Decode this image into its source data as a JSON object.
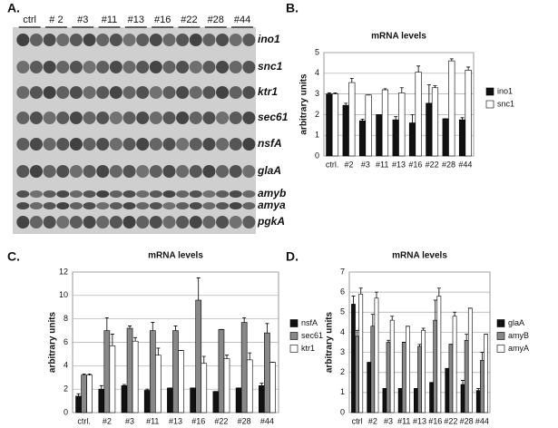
{
  "blot": {
    "panel_label": "A.",
    "lanes": [
      "ctrl",
      "# 2",
      "#3",
      "#11",
      "#13",
      "#16",
      "#22",
      "#28",
      "#44"
    ],
    "genes": [
      "ino1",
      "snc1",
      "ktr1",
      "sec61",
      "nsfA",
      "glaA",
      "amyb",
      "amya",
      "pgkA"
    ]
  },
  "chart_data": [
    {
      "type": "bar",
      "panel_label": "B.",
      "title": "mRNA levels",
      "y_label": "arbitrary units",
      "categories": [
        "ctrl.",
        "#2",
        "#3",
        "#11",
        "#13",
        "#16",
        "#22",
        "#28",
        "#44"
      ],
      "series": [
        {
          "name": "ino1",
          "color": "#111111",
          "values": [
            3.0,
            2.45,
            1.7,
            2.0,
            1.75,
            1.6,
            2.55,
            1.8,
            1.75
          ],
          "errors": [
            0.05,
            0.1,
            0.08,
            0,
            0.15,
            0.4,
            0.9,
            0,
            0.1
          ]
        },
        {
          "name": "snc1",
          "color": "#ffffff",
          "values": [
            3.0,
            3.55,
            2.95,
            3.2,
            3.05,
            4.05,
            3.3,
            4.6,
            4.15
          ],
          "errors": [
            0.05,
            0.2,
            0,
            0.05,
            0.25,
            0.3,
            0.1,
            0.1,
            0.15
          ]
        }
      ],
      "ylim": [
        0,
        5
      ],
      "yticks": [
        0,
        1,
        2,
        3,
        4,
        5
      ],
      "grid": true,
      "legend": "right"
    },
    {
      "type": "bar",
      "panel_label": "C.",
      "title": "mRNA levels",
      "y_label": "arbitrary units",
      "categories": [
        "ctrl.",
        "#2",
        "#3",
        "#11",
        "#13",
        "#16",
        "#22",
        "#28",
        "#44"
      ],
      "series": [
        {
          "name": "nsfA",
          "color": "#111111",
          "values": [
            1.4,
            2.0,
            2.3,
            1.9,
            2.1,
            2.1,
            1.8,
            2.1,
            2.3
          ],
          "errors": [
            0.2,
            0.3,
            0.1,
            0.1,
            0,
            0,
            0,
            0,
            0.2
          ]
        },
        {
          "name": "sec61",
          "color": "#888888",
          "values": [
            3.2,
            7.0,
            7.2,
            7.0,
            7.0,
            9.6,
            7.1,
            7.7,
            6.8
          ],
          "errors": [
            0.1,
            1.1,
            0.2,
            0.7,
            0.4,
            1.9,
            0,
            0.4,
            0.8
          ]
        },
        {
          "name": "ktr1",
          "color": "#ffffff",
          "values": [
            3.2,
            5.7,
            6.1,
            4.9,
            5.3,
            4.2,
            4.6,
            4.5,
            4.3
          ],
          "errors": [
            0.1,
            1.0,
            0.3,
            0.6,
            0,
            0.6,
            0.3,
            0.6,
            0
          ]
        }
      ],
      "ylim": [
        0,
        12
      ],
      "yticks": [
        0,
        2,
        4,
        6,
        8,
        10,
        12
      ],
      "grid": true,
      "legend": "right"
    },
    {
      "type": "bar",
      "panel_label": "D.",
      "title": "mRNA levels",
      "y_label": "arbitrary units",
      "categories": [
        "ctrl",
        "#2",
        "#3",
        "#11",
        "#13",
        "#16",
        "#22",
        "#28",
        "#44"
      ],
      "series": [
        {
          "name": "glaA",
          "color": "#111111",
          "values": [
            5.4,
            2.5,
            1.2,
            1.2,
            1.2,
            1.5,
            2.2,
            1.4,
            1.1
          ],
          "errors": [
            0.4,
            0,
            0,
            0,
            0,
            0,
            0,
            0.2,
            0.1
          ]
        },
        {
          "name": "amyB",
          "color": "#888888",
          "values": [
            3.8,
            4.3,
            3.5,
            3.5,
            3.3,
            4.6,
            3.4,
            3.6,
            2.6
          ],
          "errors": [
            0.3,
            0.6,
            0.1,
            0,
            0.1,
            1.0,
            0,
            0.3,
            0.4
          ]
        },
        {
          "name": "amyA",
          "color": "#ffffff",
          "values": [
            5.9,
            5.7,
            4.6,
            4.3,
            4.1,
            5.8,
            4.8,
            5.2,
            3.9
          ],
          "errors": [
            0.3,
            0.3,
            0.2,
            0,
            0.1,
            0.4,
            0.2,
            0,
            0
          ]
        }
      ],
      "ylim": [
        0,
        7
      ],
      "yticks": [
        0,
        1,
        2,
        3,
        4,
        5,
        6,
        7
      ],
      "grid": true,
      "legend": "right"
    }
  ]
}
